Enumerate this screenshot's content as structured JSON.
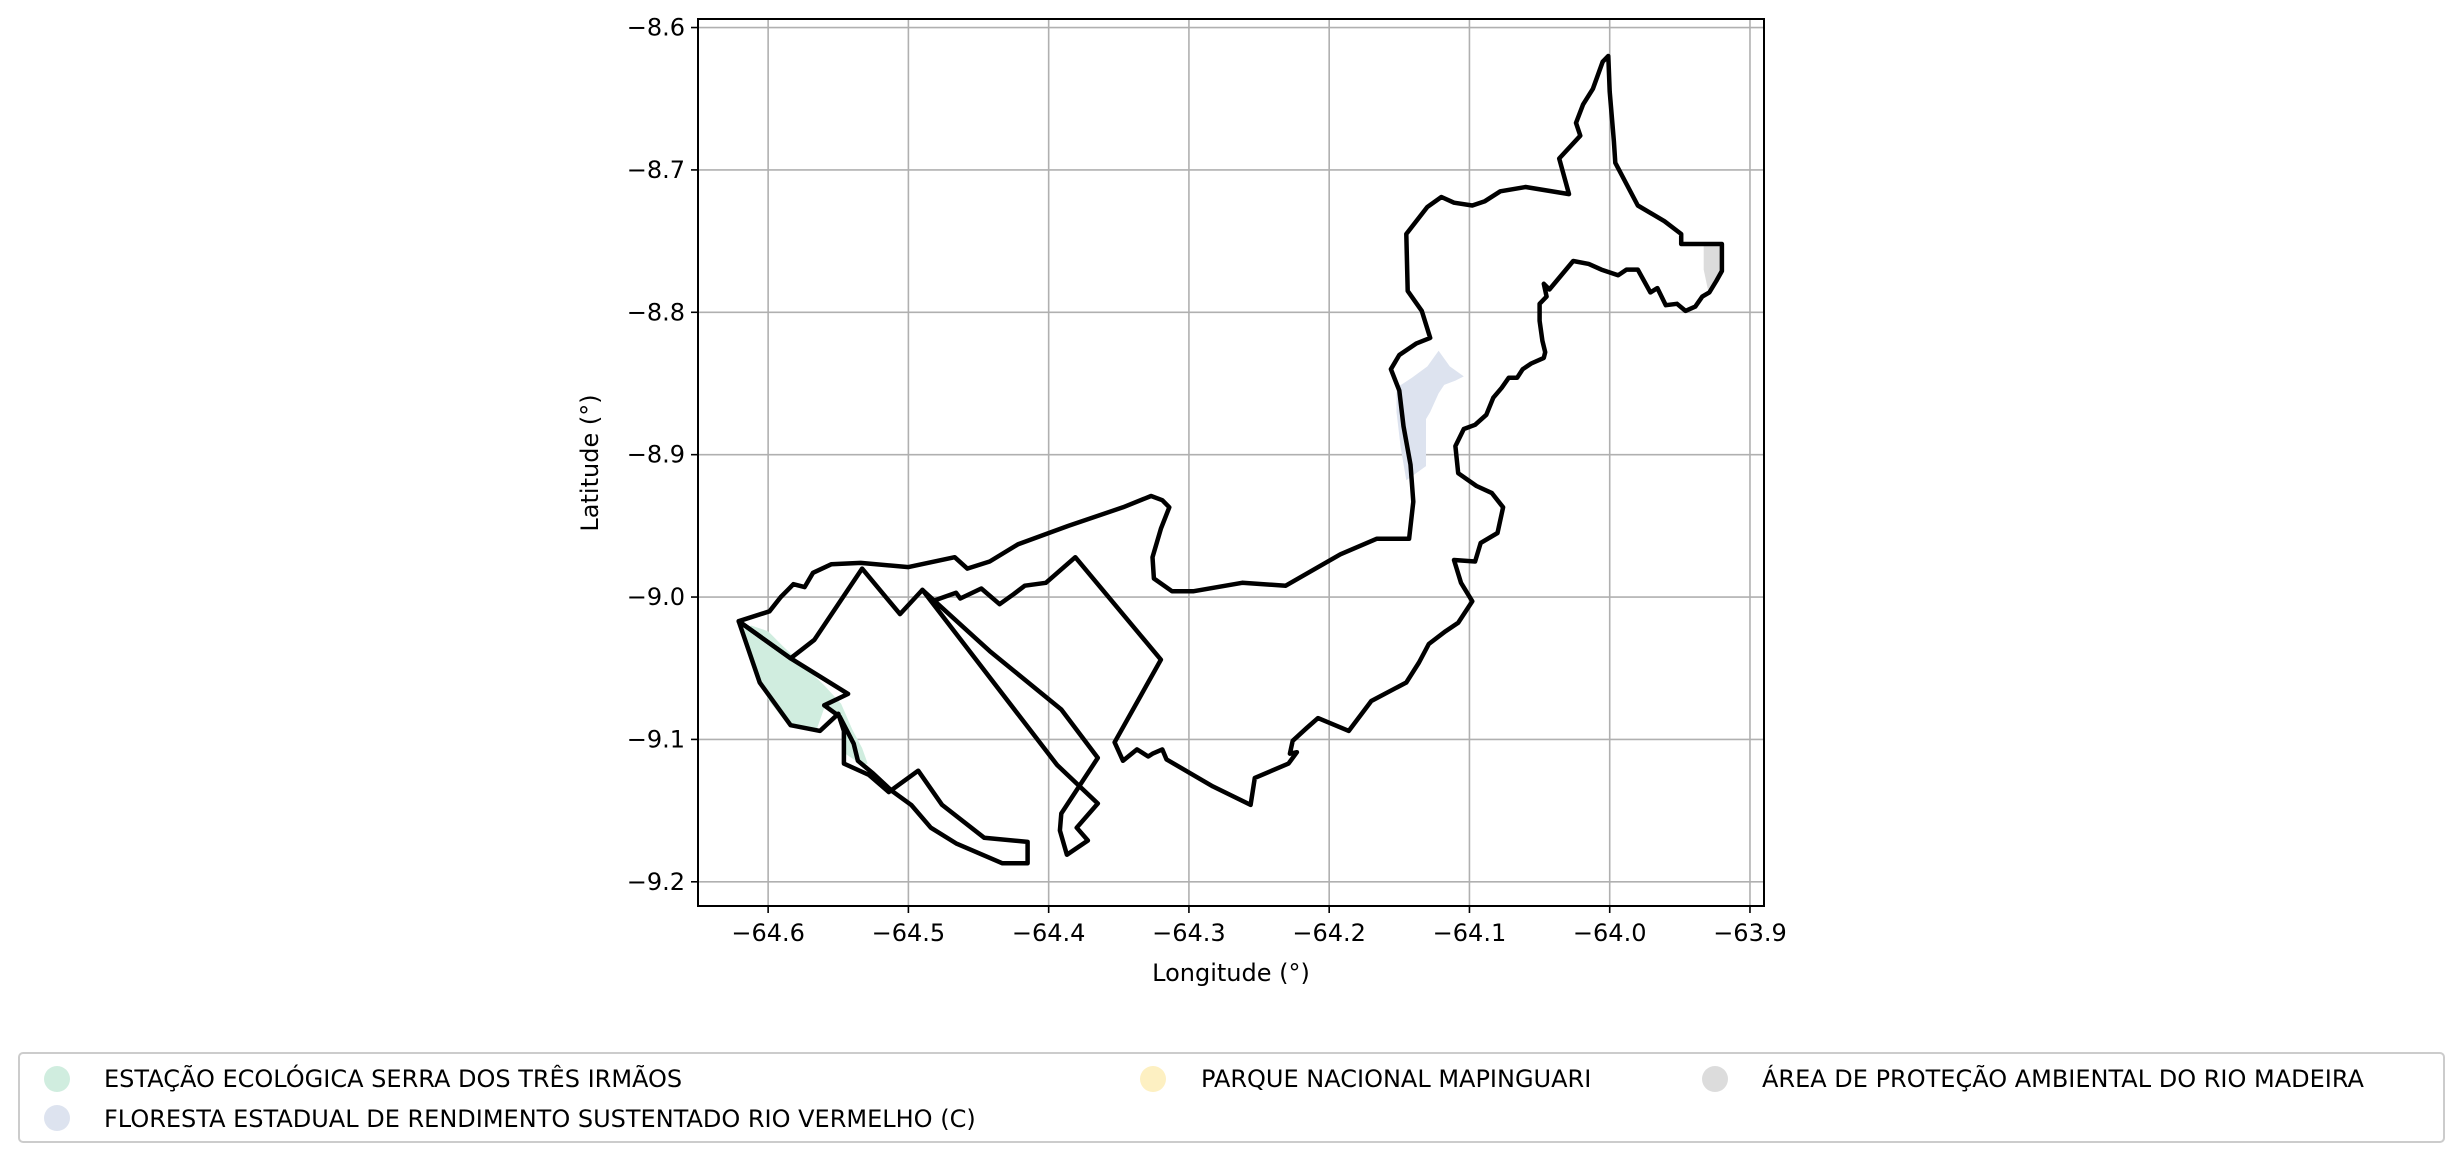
{
  "chart_data": {
    "type": "map",
    "title": "",
    "xlabel": "Longitude (°)",
    "ylabel": "Latitude (°)",
    "xlim": [
      -64.65,
      -63.89
    ],
    "ylim": [
      -9.217,
      -8.594
    ],
    "grid": true,
    "legend_placement": "below",
    "xticks": [
      -64.6,
      -64.5,
      -64.4,
      -64.3,
      -64.2,
      -64.1,
      -64.0,
      -63.9
    ],
    "yticks": [
      -8.6,
      -8.7,
      -8.8,
      -8.9,
      -9.0,
      -9.1,
      -9.2
    ],
    "xtick_labels": [
      "−64.6",
      "−64.5",
      "−64.4",
      "−64.3",
      "−64.2",
      "−64.1",
      "−64.0",
      "−63.9"
    ],
    "ytick_labels": [
      "−8.6",
      "−8.7",
      "−8.8",
      "−8.9",
      "−9.0",
      "−9.1",
      "−9.2"
    ],
    "legend": [
      {
        "label": "ESTAÇÃO ECOLÓGICA SERRA DOS TRÊS IRMÃOS",
        "color": "#d0eddf"
      },
      {
        "label": "FLORESTA ESTADUAL DE RENDIMENTO SUSTENTADO RIO VERMELHO (C)",
        "color": "#dde3ef"
      },
      {
        "label": "PARQUE NACIONAL MAPINGUARI",
        "color": "#fdf0c2"
      },
      {
        "label": "ÁREA DE PROTEÇÃO AMBIENTAL DO RIO MADEIRA",
        "color": "#dcdcdc"
      }
    ],
    "outline_color": "#000000",
    "boundaries": [
      {
        "name": "main-boundary",
        "points": [
          [
            -64.621,
            -9.017
          ],
          [
            -64.599,
            -9.01
          ],
          [
            -64.591,
            -9.0
          ],
          [
            -64.586,
            -8.995
          ],
          [
            -64.582,
            -8.991
          ],
          [
            -64.574,
            -8.993
          ],
          [
            -64.568,
            -8.983
          ],
          [
            -64.555,
            -8.977
          ],
          [
            -64.534,
            -8.976
          ],
          [
            -64.5,
            -8.979
          ],
          [
            -64.467,
            -8.972
          ],
          [
            -64.458,
            -8.98
          ],
          [
            -64.442,
            -8.975
          ],
          [
            -64.422,
            -8.963
          ],
          [
            -64.386,
            -8.95
          ],
          [
            -64.347,
            -8.937
          ],
          [
            -64.327,
            -8.929
          ],
          [
            -64.319,
            -8.932
          ],
          [
            -64.314,
            -8.937
          ],
          [
            -64.32,
            -8.952
          ],
          [
            -64.326,
            -8.972
          ],
          [
            -64.325,
            -8.987
          ],
          [
            -64.312,
            -8.996
          ],
          [
            -64.297,
            -8.996
          ],
          [
            -64.262,
            -8.99
          ],
          [
            -64.231,
            -8.992
          ],
          [
            -64.192,
            -8.97
          ],
          [
            -64.166,
            -8.959
          ],
          [
            -64.143,
            -8.959
          ],
          [
            -64.14,
            -8.933
          ],
          [
            -64.142,
            -8.907
          ],
          [
            -64.147,
            -8.88
          ],
          [
            -64.15,
            -8.855
          ],
          [
            -64.156,
            -8.84
          ],
          [
            -64.15,
            -8.83
          ],
          [
            -64.138,
            -8.822
          ],
          [
            -64.128,
            -8.818
          ],
          [
            -64.134,
            -8.799
          ],
          [
            -64.144,
            -8.785
          ],
          [
            -64.145,
            -8.745
          ],
          [
            -64.13,
            -8.726
          ],
          [
            -64.12,
            -8.719
          ],
          [
            -64.111,
            -8.723
          ],
          [
            -64.098,
            -8.725
          ],
          [
            -64.089,
            -8.722
          ],
          [
            -64.078,
            -8.715
          ],
          [
            -64.06,
            -8.712
          ],
          [
            -64.029,
            -8.717
          ],
          [
            -64.036,
            -8.692
          ],
          [
            -64.021,
            -8.676
          ],
          [
            -64.024,
            -8.667
          ],
          [
            -64.019,
            -8.654
          ],
          [
            -64.012,
            -8.643
          ],
          [
            -64.005,
            -8.624
          ],
          [
            -64.001,
            -8.62
          ],
          [
            -64.0,
            -8.645
          ],
          [
            -63.997,
            -8.68
          ],
          [
            -63.996,
            -8.695
          ],
          [
            -63.98,
            -8.725
          ],
          [
            -63.961,
            -8.736
          ],
          [
            -63.949,
            -8.745
          ],
          [
            -63.949,
            -8.752
          ],
          [
            -63.936,
            -8.752
          ],
          [
            -63.92,
            -8.752
          ],
          [
            -63.92,
            -8.771
          ],
          [
            -63.924,
            -8.778
          ],
          [
            -63.929,
            -8.786
          ],
          [
            -63.934,
            -8.789
          ],
          [
            -63.939,
            -8.796
          ],
          [
            -63.946,
            -8.799
          ],
          [
            -63.952,
            -8.794
          ],
          [
            -63.96,
            -8.795
          ],
          [
            -63.966,
            -8.783
          ],
          [
            -63.971,
            -8.786
          ],
          [
            -63.98,
            -8.77
          ],
          [
            -63.988,
            -8.77
          ],
          [
            -63.994,
            -8.774
          ],
          [
            -64.006,
            -8.77
          ],
          [
            -64.015,
            -8.766
          ],
          [
            -64.026,
            -8.764
          ],
          [
            -64.043,
            -8.784
          ],
          [
            -64.047,
            -8.78
          ],
          [
            -64.045,
            -8.789
          ],
          [
            -64.05,
            -8.794
          ],
          [
            -64.05,
            -8.806
          ],
          [
            -64.048,
            -8.82
          ],
          [
            -64.046,
            -8.828
          ],
          [
            -64.047,
            -8.832
          ],
          [
            -64.056,
            -8.836
          ],
          [
            -64.062,
            -8.84
          ],
          [
            -64.066,
            -8.846
          ],
          [
            -64.072,
            -8.846
          ],
          [
            -64.077,
            -8.853
          ],
          [
            -64.083,
            -8.86
          ],
          [
            -64.088,
            -8.872
          ],
          [
            -64.096,
            -8.879
          ],
          [
            -64.104,
            -8.882
          ],
          [
            -64.11,
            -8.894
          ],
          [
            -64.108,
            -8.913
          ],
          [
            -64.095,
            -8.922
          ],
          [
            -64.084,
            -8.927
          ],
          [
            -64.076,
            -8.937
          ],
          [
            -64.08,
            -8.955
          ],
          [
            -64.092,
            -8.962
          ],
          [
            -64.096,
            -8.975
          ],
          [
            -64.111,
            -8.974
          ],
          [
            -64.106,
            -8.99
          ],
          [
            -64.098,
            -9.003
          ],
          [
            -64.108,
            -9.018
          ],
          [
            -64.117,
            -9.024
          ],
          [
            -64.129,
            -9.033
          ],
          [
            -64.136,
            -9.046
          ],
          [
            -64.145,
            -9.06
          ],
          [
            -64.17,
            -9.073
          ],
          [
            -64.186,
            -9.094
          ],
          [
            -64.208,
            -9.085
          ],
          [
            -64.216,
            -9.092
          ],
          [
            -64.226,
            -9.101
          ],
          [
            -64.228,
            -9.11
          ],
          [
            -64.223,
            -9.109
          ],
          [
            -64.229,
            -9.117
          ],
          [
            -64.253,
            -9.127
          ],
          [
            -64.256,
            -9.146
          ],
          [
            -64.283,
            -9.133
          ],
          [
            -64.316,
            -9.114
          ],
          [
            -64.319,
            -9.107
          ],
          [
            -64.326,
            -9.11
          ],
          [
            -64.329,
            -9.112
          ],
          [
            -64.337,
            -9.107
          ],
          [
            -64.347,
            -9.115
          ],
          [
            -64.353,
            -9.102
          ],
          [
            -64.32,
            -9.044
          ],
          [
            -64.381,
            -8.972
          ],
          [
            -64.402,
            -8.99
          ],
          [
            -64.417,
            -8.992
          ],
          [
            -64.425,
            -8.998
          ],
          [
            -64.435,
            -9.005
          ],
          [
            -64.448,
            -8.994
          ],
          [
            -64.463,
            -9.001
          ],
          [
            -64.466,
            -8.997
          ],
          [
            -64.483,
            -9.003
          ],
          [
            -64.49,
            -8.995
          ],
          [
            -64.506,
            -9.012
          ],
          [
            -64.533,
            -8.98
          ],
          [
            -64.567,
            -9.03
          ],
          [
            -64.584,
            -9.043
          ]
        ]
      },
      {
        "name": "east-polygon",
        "points": [
          [
            -64.49,
            -8.995
          ],
          [
            -64.442,
            -9.038
          ],
          [
            -64.391,
            -9.079
          ],
          [
            -64.365,
            -9.113
          ],
          [
            -64.391,
            -9.152
          ],
          [
            -64.392,
            -9.164
          ],
          [
            -64.387,
            -9.181
          ],
          [
            -64.372,
            -9.171
          ],
          [
            -64.38,
            -9.162
          ],
          [
            -64.365,
            -9.145
          ],
          [
            -64.394,
            -9.118
          ],
          [
            -64.49,
            -8.995
          ]
        ]
      },
      {
        "name": "west-polygon",
        "points": [
          [
            -64.621,
            -9.017
          ],
          [
            -64.606,
            -9.06
          ],
          [
            -64.584,
            -9.09
          ],
          [
            -64.563,
            -9.094
          ],
          [
            -64.55,
            -9.082
          ],
          [
            -64.546,
            -9.094
          ],
          [
            -64.546,
            -9.117
          ],
          [
            -64.528,
            -9.125
          ],
          [
            -64.514,
            -9.137
          ],
          [
            -64.493,
            -9.122
          ],
          [
            -64.476,
            -9.146
          ],
          [
            -64.446,
            -9.169
          ],
          [
            -64.415,
            -9.172
          ],
          [
            -64.415,
            -9.187
          ],
          [
            -64.433,
            -9.187
          ],
          [
            -64.466,
            -9.173
          ],
          [
            -64.484,
            -9.162
          ],
          [
            -64.498,
            -9.146
          ],
          [
            -64.512,
            -9.136
          ],
          [
            -64.525,
            -9.124
          ],
          [
            -64.536,
            -9.115
          ],
          [
            -64.539,
            -9.103
          ],
          [
            -64.549,
            -9.084
          ],
          [
            -64.56,
            -9.076
          ],
          [
            -64.543,
            -9.068
          ],
          [
            -64.584,
            -9.043
          ],
          [
            -64.621,
            -9.017
          ]
        ]
      }
    ],
    "areas": [
      {
        "name": "estacao-ecologica",
        "color": "#d0eddf",
        "points": [
          [
            -64.612,
            -9.02
          ],
          [
            -64.6,
            -9.024
          ],
          [
            -64.59,
            -9.034
          ],
          [
            -64.575,
            -9.048
          ],
          [
            -64.56,
            -9.062
          ],
          [
            -64.548,
            -9.075
          ],
          [
            -64.54,
            -9.093
          ],
          [
            -64.533,
            -9.106
          ],
          [
            -64.529,
            -9.117
          ],
          [
            -64.533,
            -9.118
          ],
          [
            -64.545,
            -9.11
          ],
          [
            -64.547,
            -9.092
          ],
          [
            -64.55,
            -9.084
          ],
          [
            -64.56,
            -9.078
          ],
          [
            -64.565,
            -9.092
          ],
          [
            -64.585,
            -9.091
          ],
          [
            -64.6,
            -9.072
          ],
          [
            -64.61,
            -9.045
          ],
          [
            -64.618,
            -9.023
          ]
        ]
      },
      {
        "name": "floresta-estadual",
        "color": "#dde3ef",
        "points": [
          [
            -64.152,
            -8.853
          ],
          [
            -64.141,
            -8.846
          ],
          [
            -64.13,
            -8.838
          ],
          [
            -64.122,
            -8.827
          ],
          [
            -64.114,
            -8.838
          ],
          [
            -64.104,
            -8.845
          ],
          [
            -64.11,
            -8.848
          ],
          [
            -64.118,
            -8.851
          ],
          [
            -64.122,
            -8.857
          ],
          [
            -64.128,
            -8.87
          ],
          [
            -64.131,
            -8.875
          ],
          [
            -64.131,
            -8.908
          ],
          [
            -64.145,
            -8.918
          ],
          [
            -64.149,
            -8.895
          ],
          [
            -64.152,
            -8.87
          ]
        ]
      },
      {
        "name": "area-protecao-madeira",
        "color": "#dcdcdc",
        "points": [
          [
            -63.933,
            -8.752
          ],
          [
            -63.921,
            -8.752
          ],
          [
            -63.921,
            -8.77
          ],
          [
            -63.925,
            -8.777
          ],
          [
            -63.93,
            -8.784
          ],
          [
            -63.933,
            -8.77
          ]
        ]
      }
    ]
  }
}
